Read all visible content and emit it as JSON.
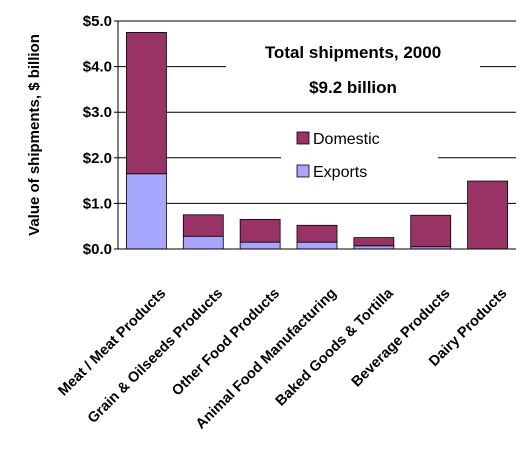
{
  "chart_data": {
    "type": "bar",
    "stacked": true,
    "categories": [
      "Meat / Meat Products",
      "Grain & Oilseeds Products",
      "Other Food Products",
      "Animal Food Manufacturing",
      "Baked Goods & Tortilla",
      "Beverage Products",
      "Dairy Products"
    ],
    "series": [
      {
        "name": "Exports",
        "color": "#a6a6ff",
        "values": [
          1.65,
          0.28,
          0.15,
          0.15,
          0.07,
          0.05,
          0.0
        ]
      },
      {
        "name": "Domestic",
        "color": "#993366",
        "values": [
          3.1,
          0.47,
          0.5,
          0.37,
          0.18,
          0.69,
          1.49
        ]
      }
    ],
    "ylabel": "Value of shipments, $ billion",
    "yticks": [
      "$0.0",
      "$1.0",
      "$2.0",
      "$3.0",
      "$4.0",
      "$5.0"
    ],
    "ylim": [
      0,
      5
    ],
    "grid": "horizontal",
    "legend": {
      "placement": "center-right",
      "entries": [
        "Domestic",
        "Exports"
      ]
    },
    "annotation": {
      "line1": "Total shipments, 2000",
      "line2": "$9.2 billion"
    }
  }
}
